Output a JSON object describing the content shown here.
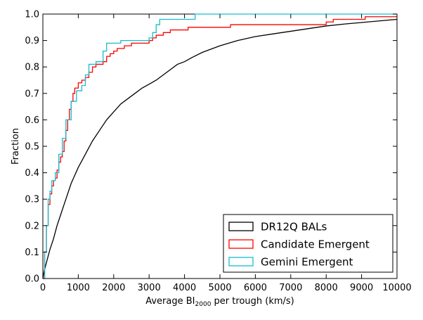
{
  "chart_data": {
    "type": "line",
    "title": "",
    "xlabel": {
      "prefix": "Average BI",
      "subscript": "2000",
      "suffix": " per trough (km/s)"
    },
    "ylabel": "Fraction",
    "xlim": [
      0,
      10000
    ],
    "ylim": [
      0.0,
      1.0
    ],
    "xticks": [
      "0",
      "1000",
      "2000",
      "3000",
      "4000",
      "5000",
      "6000",
      "7000",
      "8000",
      "9000",
      "10000"
    ],
    "yticks": [
      "0.0",
      "0.1",
      "0.2",
      "0.3",
      "0.4",
      "0.5",
      "0.6",
      "0.7",
      "0.8",
      "0.9",
      "1.0"
    ],
    "grid": false,
    "legend_position": "bottom-right",
    "series": [
      {
        "name": "DR12Q BALs",
        "color": "#000000",
        "step": false,
        "points": [
          [
            0,
            0
          ],
          [
            40,
            0.03
          ],
          [
            100,
            0.06
          ],
          [
            200,
            0.11
          ],
          [
            300,
            0.15
          ],
          [
            400,
            0.2
          ],
          [
            500,
            0.24
          ],
          [
            600,
            0.28
          ],
          [
            700,
            0.32
          ],
          [
            800,
            0.36
          ],
          [
            900,
            0.39
          ],
          [
            1000,
            0.42
          ],
          [
            1200,
            0.47
          ],
          [
            1400,
            0.52
          ],
          [
            1600,
            0.56
          ],
          [
            1800,
            0.6
          ],
          [
            2000,
            0.63
          ],
          [
            2200,
            0.66
          ],
          [
            2400,
            0.68
          ],
          [
            2600,
            0.7
          ],
          [
            2800,
            0.72
          ],
          [
            3000,
            0.735
          ],
          [
            3200,
            0.75
          ],
          [
            3400,
            0.77
          ],
          [
            3600,
            0.79
          ],
          [
            3800,
            0.81
          ],
          [
            4000,
            0.82
          ],
          [
            4200,
            0.835
          ],
          [
            4500,
            0.855
          ],
          [
            5000,
            0.88
          ],
          [
            5500,
            0.9
          ],
          [
            6000,
            0.915
          ],
          [
            6500,
            0.925
          ],
          [
            7000,
            0.935
          ],
          [
            7500,
            0.945
          ],
          [
            8000,
            0.955
          ],
          [
            8500,
            0.962
          ],
          [
            9000,
            0.968
          ],
          [
            9500,
            0.974
          ],
          [
            10000,
            0.98
          ]
        ]
      },
      {
        "name": "Candidate Emergent",
        "color": "#ff0000",
        "step": true,
        "points": [
          [
            0,
            0
          ],
          [
            50,
            0.1
          ],
          [
            100,
            0.2
          ],
          [
            150,
            0.28
          ],
          [
            200,
            0.32
          ],
          [
            250,
            0.35
          ],
          [
            300,
            0.37
          ],
          [
            350,
            0.38
          ],
          [
            400,
            0.41
          ],
          [
            450,
            0.44
          ],
          [
            500,
            0.46
          ],
          [
            550,
            0.48
          ],
          [
            600,
            0.52
          ],
          [
            650,
            0.56
          ],
          [
            700,
            0.6
          ],
          [
            750,
            0.64
          ],
          [
            800,
            0.67
          ],
          [
            850,
            0.7
          ],
          [
            900,
            0.72
          ],
          [
            1000,
            0.74
          ],
          [
            1100,
            0.75
          ],
          [
            1200,
            0.76
          ],
          [
            1300,
            0.78
          ],
          [
            1400,
            0.8
          ],
          [
            1500,
            0.81
          ],
          [
            1700,
            0.82
          ],
          [
            1800,
            0.84
          ],
          [
            1900,
            0.85
          ],
          [
            2000,
            0.86
          ],
          [
            2100,
            0.87
          ],
          [
            2300,
            0.88
          ],
          [
            2500,
            0.89
          ],
          [
            3000,
            0.9
          ],
          [
            3100,
            0.91
          ],
          [
            3200,
            0.92
          ],
          [
            3400,
            0.93
          ],
          [
            3600,
            0.94
          ],
          [
            4100,
            0.95
          ],
          [
            5300,
            0.96
          ],
          [
            6500,
            0.96
          ],
          [
            8000,
            0.97
          ],
          [
            8200,
            0.98
          ],
          [
            9000,
            0.98
          ],
          [
            9100,
            0.99
          ],
          [
            10000,
            0.99
          ]
        ]
      },
      {
        "name": "Gemini Emergent",
        "color": "#17becf",
        "step": true,
        "points": [
          [
            0,
            0
          ],
          [
            50,
            0.1
          ],
          [
            100,
            0.2
          ],
          [
            150,
            0.3
          ],
          [
            200,
            0.33
          ],
          [
            250,
            0.37
          ],
          [
            350,
            0.4
          ],
          [
            450,
            0.47
          ],
          [
            550,
            0.53
          ],
          [
            650,
            0.6
          ],
          [
            800,
            0.67
          ],
          [
            950,
            0.71
          ],
          [
            1100,
            0.73
          ],
          [
            1200,
            0.77
          ],
          [
            1300,
            0.81
          ],
          [
            1500,
            0.82
          ],
          [
            1700,
            0.86
          ],
          [
            1800,
            0.89
          ],
          [
            2200,
            0.9
          ],
          [
            2300,
            0.9
          ],
          [
            3000,
            0.91
          ],
          [
            3100,
            0.93
          ],
          [
            3200,
            0.96
          ],
          [
            3300,
            0.98
          ],
          [
            4200,
            0.98
          ],
          [
            4300,
            1.0
          ],
          [
            10000,
            1.0
          ]
        ]
      }
    ]
  }
}
